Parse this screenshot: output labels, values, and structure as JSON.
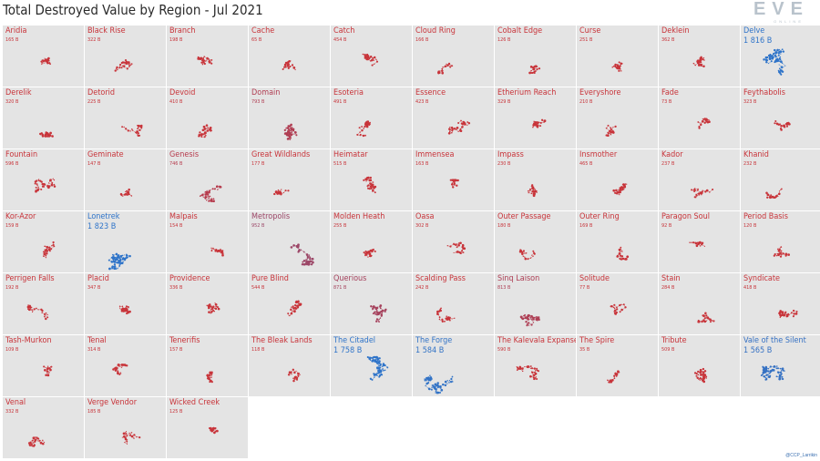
{
  "title": "Total Destroyed Value by Region - Jul 2021",
  "logo": {
    "text": "EVE",
    "sub": "ONLINE"
  },
  "credit": "@CCP_Larrikin",
  "chart_data": {
    "type": "small-multiples",
    "measure": "Total Destroyed Value",
    "unit": "B",
    "color_scale": {
      "low": "#c8343a",
      "mid": "#8a4d7a",
      "high": "#2f74c9"
    },
    "regions": [
      {
        "name": "Aridia",
        "label": "165 B",
        "value": 165
      },
      {
        "name": "Black Rise",
        "label": "322 B",
        "value": 322
      },
      {
        "name": "Branch",
        "label": "198 B",
        "value": 198
      },
      {
        "name": "Cache",
        "label": "65 B",
        "value": 65
      },
      {
        "name": "Catch",
        "label": "454 B",
        "value": 454
      },
      {
        "name": "Cloud Ring",
        "label": "166 B",
        "value": 166
      },
      {
        "name": "Cobalt Edge",
        "label": "126 B",
        "value": 126
      },
      {
        "name": "Curse",
        "label": "251 B",
        "value": 251
      },
      {
        "name": "Deklein",
        "label": "362 B",
        "value": 362
      },
      {
        "name": "Delve",
        "label": "1 816 B",
        "value": 1816
      },
      {
        "name": "Derelik",
        "label": "320 B",
        "value": 320
      },
      {
        "name": "Detorid",
        "label": "225 B",
        "value": 225
      },
      {
        "name": "Devoid",
        "label": "410 B",
        "value": 410
      },
      {
        "name": "Domain",
        "label": "793 B",
        "value": 793
      },
      {
        "name": "Esoteria",
        "label": "491 B",
        "value": 491
      },
      {
        "name": "Essence",
        "label": "423 B",
        "value": 423
      },
      {
        "name": "Etherium Reach",
        "label": "329 B",
        "value": 329
      },
      {
        "name": "Everyshore",
        "label": "210 B",
        "value": 210
      },
      {
        "name": "Fade",
        "label": "73 B",
        "value": 73
      },
      {
        "name": "Feythabolis",
        "label": "323 B",
        "value": 323
      },
      {
        "name": "Fountain",
        "label": "596 B",
        "value": 596
      },
      {
        "name": "Geminate",
        "label": "147 B",
        "value": 147
      },
      {
        "name": "Genesis",
        "label": "746 B",
        "value": 746
      },
      {
        "name": "Great Wildlands",
        "label": "177 B",
        "value": 177
      },
      {
        "name": "Heimatar",
        "label": "515 B",
        "value": 515
      },
      {
        "name": "Immensea",
        "label": "163 B",
        "value": 163
      },
      {
        "name": "Impass",
        "label": "230 B",
        "value": 230
      },
      {
        "name": "Insmother",
        "label": "465 B",
        "value": 465
      },
      {
        "name": "Kador",
        "label": "237 B",
        "value": 237
      },
      {
        "name": "Khanid",
        "label": "232 B",
        "value": 232
      },
      {
        "name": "Kor-Azor",
        "label": "159 B",
        "value": 159
      },
      {
        "name": "Lonetrek",
        "label": "1 823 B",
        "value": 1823
      },
      {
        "name": "Malpais",
        "label": "154 B",
        "value": 154
      },
      {
        "name": "Metropolis",
        "label": "952 B",
        "value": 952
      },
      {
        "name": "Molden Heath",
        "label": "255 B",
        "value": 255
      },
      {
        "name": "Oasa",
        "label": "302 B",
        "value": 302
      },
      {
        "name": "Outer Passage",
        "label": "180 B",
        "value": 180
      },
      {
        "name": "Outer Ring",
        "label": "169 B",
        "value": 169
      },
      {
        "name": "Paragon Soul",
        "label": "92 B",
        "value": 92
      },
      {
        "name": "Period Basis",
        "label": "120 B",
        "value": 120
      },
      {
        "name": "Perrigen Falls",
        "label": "192 B",
        "value": 192
      },
      {
        "name": "Placid",
        "label": "347 B",
        "value": 347
      },
      {
        "name": "Providence",
        "label": "336 B",
        "value": 336
      },
      {
        "name": "Pure Blind",
        "label": "544 B",
        "value": 544
      },
      {
        "name": "Querious",
        "label": "871 B",
        "value": 871
      },
      {
        "name": "Scalding Pass",
        "label": "242 B",
        "value": 242
      },
      {
        "name": "Sinq Laison",
        "label": "813 B",
        "value": 813
      },
      {
        "name": "Solitude",
        "label": "77 B",
        "value": 77
      },
      {
        "name": "Stain",
        "label": "284 B",
        "value": 284
      },
      {
        "name": "Syndicate",
        "label": "418 B",
        "value": 418
      },
      {
        "name": "Tash-Murkon",
        "label": "109 B",
        "value": 109
      },
      {
        "name": "Tenal",
        "label": "314 B",
        "value": 314
      },
      {
        "name": "Tenerifis",
        "label": "157 B",
        "value": 157
      },
      {
        "name": "The Bleak Lands",
        "label": "118 B",
        "value": 118
      },
      {
        "name": "The Citadel",
        "label": "1 758 B",
        "value": 1758
      },
      {
        "name": "The Forge",
        "label": "1 584 B",
        "value": 1584
      },
      {
        "name": "The Kalevala Expanse",
        "label": "590 B",
        "value": 590
      },
      {
        "name": "The Spire",
        "label": "35 B",
        "value": 35
      },
      {
        "name": "Tribute",
        "label": "509 B",
        "value": 509
      },
      {
        "name": "Vale of the Silent",
        "label": "1 565 B",
        "value": 1565
      },
      {
        "name": "Venal",
        "label": "332 B",
        "value": 332
      },
      {
        "name": "Verge Vendor",
        "label": "185 B",
        "value": 185
      },
      {
        "name": "Wicked Creek",
        "label": "125 B",
        "value": 125
      }
    ]
  }
}
